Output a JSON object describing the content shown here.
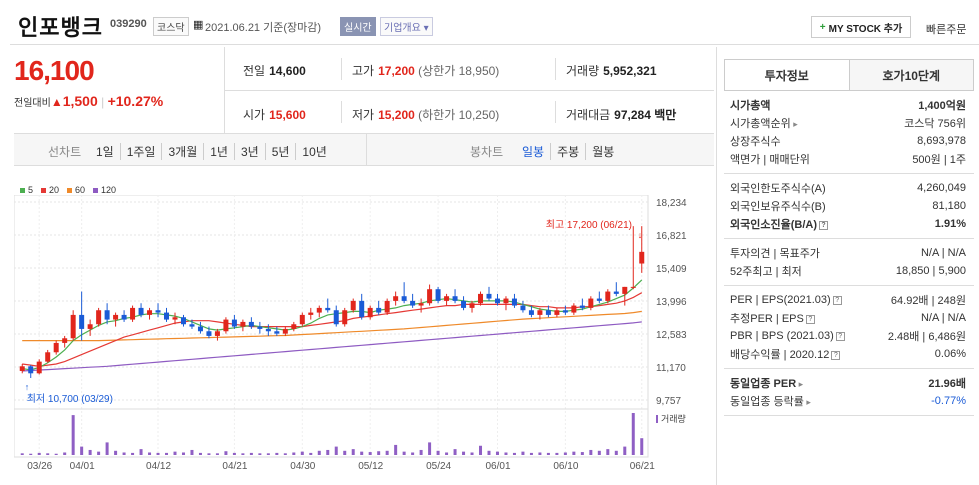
{
  "header": {
    "name": "인포뱅크",
    "code": "039290",
    "market": "코스닥",
    "date": "2021.06.21 기준(장마감)",
    "live_tag": "실시간",
    "info_tag": "기업개요",
    "mystock_label": "MY STOCK 추가",
    "quick_order_label": "빠른주문"
  },
  "price": {
    "current": "16,100",
    "change_label": "전일대비",
    "change": "1,500",
    "change_rate": "+10.27%"
  },
  "summary": {
    "prev_label": "전일",
    "prev": "14,600",
    "high_label": "고가",
    "high": "17,200",
    "upper_limit": "(상한가 18,950)",
    "volume_label": "거래량",
    "volume": "5,952,321",
    "open_label": "시가",
    "open": "15,600",
    "low_label": "저가",
    "low": "15,200",
    "lower_limit": "(하한가 10,250)",
    "amount_label": "거래대금",
    "amount": "97,284",
    "amount_unit": "백만"
  },
  "tabs": {
    "line_label": "선차트",
    "periods": [
      "1일",
      "1주일",
      "3개월",
      "1년",
      "3년",
      "5년",
      "10년"
    ],
    "candle_label": "봉차트",
    "candles": [
      "일봉",
      "주봉",
      "월봉"
    ],
    "selected_candle": "일봉"
  },
  "chart_data": {
    "type": "candlestick",
    "legend": [
      {
        "name": "5",
        "color": "#4caf50"
      },
      {
        "name": "20",
        "color": "#e53935"
      },
      {
        "name": "60",
        "color": "#ef8a2a"
      },
      {
        "name": "120",
        "color": "#8e5bc2"
      }
    ],
    "y_ticks": [
      "18,234",
      "16,821",
      "15,409",
      "13,996",
      "12,583",
      "11,170",
      "9,757"
    ],
    "ylim": [
      9757,
      18234
    ],
    "x_ticks": [
      "03/26",
      "04/01",
      "04/12",
      "04/21",
      "04/30",
      "05/12",
      "05/24",
      "06/01",
      "06/10",
      "06/21"
    ],
    "high_annotation": "최고 17,200 (06/21)",
    "low_annotation": "최저 10,700 (03/29)",
    "volume_label": "거래량",
    "candles": [
      [
        11000,
        11300,
        10900,
        11200
      ],
      [
        11200,
        11250,
        10700,
        10900
      ],
      [
        10900,
        11500,
        10850,
        11400
      ],
      [
        11400,
        11900,
        11350,
        11800
      ],
      [
        11800,
        12300,
        11700,
        12200
      ],
      [
        12200,
        12500,
        12000,
        12400
      ],
      [
        12400,
        13600,
        12300,
        13400
      ],
      [
        13400,
        14400,
        12300,
        12800
      ],
      [
        12800,
        13200,
        12500,
        13000
      ],
      [
        13000,
        13700,
        12900,
        13600
      ],
      [
        13600,
        13900,
        13000,
        13200
      ],
      [
        13200,
        13500,
        12900,
        13400
      ],
      [
        13400,
        13600,
        13100,
        13200
      ],
      [
        13200,
        13800,
        13100,
        13700
      ],
      [
        13700,
        13900,
        13300,
        13400
      ],
      [
        13400,
        13700,
        13200,
        13600
      ],
      [
        13600,
        13900,
        13300,
        13500
      ],
      [
        13500,
        13700,
        13100,
        13200
      ],
      [
        13200,
        13500,
        13000,
        13300
      ],
      [
        13300,
        13400,
        12900,
        13000
      ],
      [
        13000,
        13200,
        12800,
        12900
      ],
      [
        12900,
        13100,
        12600,
        12700
      ],
      [
        12700,
        12900,
        12400,
        12500
      ],
      [
        12500,
        12800,
        12300,
        12700
      ],
      [
        12700,
        13300,
        12600,
        13200
      ],
      [
        13200,
        13400,
        12800,
        12900
      ],
      [
        12900,
        13200,
        12700,
        13100
      ],
      [
        13100,
        13300,
        12800,
        12900
      ],
      [
        12900,
        13100,
        12600,
        12800
      ],
      [
        12800,
        13000,
        12500,
        12700
      ],
      [
        12700,
        12900,
        12500,
        12600
      ],
      [
        12600,
        12900,
        12500,
        12800
      ],
      [
        12800,
        13100,
        12700,
        13000
      ],
      [
        13000,
        13500,
        12900,
        13400
      ],
      [
        13400,
        13700,
        13200,
        13500
      ],
      [
        13500,
        13800,
        13300,
        13700
      ],
      [
        13700,
        14100,
        13500,
        13600
      ],
      [
        13600,
        13800,
        12900,
        13000
      ],
      [
        13000,
        13700,
        12900,
        13600
      ],
      [
        13600,
        14100,
        13500,
        14000
      ],
      [
        14000,
        14300,
        13200,
        13300
      ],
      [
        13300,
        13800,
        13200,
        13700
      ],
      [
        13700,
        14000,
        13400,
        13500
      ],
      [
        13500,
        14100,
        13400,
        14000
      ],
      [
        14000,
        14400,
        13800,
        14200
      ],
      [
        14200,
        14800,
        13900,
        14000
      ],
      [
        14000,
        14300,
        13700,
        13800
      ],
      [
        13800,
        14100,
        13500,
        13900
      ],
      [
        13900,
        14700,
        13800,
        14500
      ],
      [
        14500,
        14600,
        13900,
        14000
      ],
      [
        14000,
        14300,
        13800,
        14200
      ],
      [
        14200,
        14500,
        13900,
        14000
      ],
      [
        14000,
        14200,
        13600,
        13700
      ],
      [
        13700,
        14000,
        13500,
        13900
      ],
      [
        13900,
        14400,
        13800,
        14300
      ],
      [
        14300,
        14600,
        14000,
        14100
      ],
      [
        14100,
        14300,
        13800,
        13900
      ],
      [
        13900,
        14200,
        13600,
        14100
      ],
      [
        14100,
        14300,
        13700,
        13800
      ],
      [
        13800,
        14000,
        13500,
        13600
      ],
      [
        13600,
        13800,
        13300,
        13400
      ],
      [
        13400,
        13700,
        13200,
        13600
      ],
      [
        13600,
        13800,
        13300,
        13400
      ],
      [
        13400,
        13700,
        13300,
        13600
      ],
      [
        13600,
        13800,
        13400,
        13500
      ],
      [
        13500,
        13900,
        13400,
        13800
      ],
      [
        13800,
        14100,
        13600,
        13700
      ],
      [
        13700,
        14200,
        13600,
        14100
      ],
      [
        14100,
        14400,
        13900,
        14000
      ],
      [
        14000,
        14500,
        13900,
        14400
      ],
      [
        14400,
        14800,
        14200,
        14300
      ],
      [
        14300,
        14600,
        13800,
        14600
      ],
      [
        14600,
        17200,
        14500,
        14600
      ],
      [
        15600,
        17200,
        15200,
        16100
      ]
    ],
    "ma5": [
      11100,
      11050,
      11150,
      11350,
      11600,
      11900,
      12300,
      12550,
      12750,
      12950,
      13100,
      13150,
      13250,
      13300,
      13400,
      13450,
      13450,
      13400,
      13350,
      13250,
      13100,
      12950,
      12800,
      12750,
      12800,
      12850,
      12900,
      12950,
      12900,
      12850,
      12800,
      12750,
      12800,
      12900,
      13050,
      13250,
      13400,
      13450,
      13500,
      13550,
      13550,
      13500,
      13600,
      13650,
      13700,
      13800,
      13850,
      13900,
      14000,
      14050,
      14100,
      14050,
      14000,
      13950,
      14000,
      14000,
      14000,
      14000,
      13950,
      13850,
      13750,
      13650,
      13600,
      13550,
      13550,
      13600,
      13650,
      13750,
      13850,
      13950,
      14100,
      14250,
      14550,
      14900
    ],
    "ma20": [
      11300,
      11250,
      11200,
      11250,
      11300,
      11400,
      11550,
      11700,
      11850,
      12000,
      12150,
      12300,
      12450,
      12550,
      12650,
      12750,
      12850,
      12950,
      13050,
      13100,
      13150,
      13150,
      13150,
      13100,
      13050,
      13000,
      12950,
      12900,
      12900,
      12900,
      12900,
      12900,
      12900,
      12900,
      12950,
      13000,
      13050,
      13100,
      13150,
      13250,
      13300,
      13350,
      13400,
      13450,
      13500,
      13550,
      13600,
      13650,
      13700,
      13750,
      13800,
      13800,
      13850,
      13850,
      13850,
      13850,
      13850,
      13850,
      13850,
      13850,
      13800,
      13750,
      13750,
      13700,
      13700,
      13700,
      13750,
      13750,
      13800,
      13850,
      13900,
      14000,
      14150,
      14350
    ],
    "ma60": [
      12300,
      12300,
      12300,
      12300,
      12300,
      12300,
      12300,
      12300,
      12300,
      12300,
      12310,
      12320,
      12330,
      12340,
      12350,
      12360,
      12370,
      12380,
      12390,
      12400,
      12410,
      12420,
      12430,
      12440,
      12450,
      12460,
      12470,
      12480,
      12490,
      12500,
      12510,
      12520,
      12540,
      12560,
      12580,
      12600,
      12620,
      12640,
      12660,
      12680,
      12700,
      12720,
      12740,
      12760,
      12780,
      12800,
      12830,
      12860,
      12890,
      12920,
      12950,
      12980,
      13010,
      13040,
      13070,
      13100,
      13130,
      13160,
      13190,
      13220,
      13240,
      13260,
      13280,
      13300,
      13320,
      13340,
      13360,
      13380,
      13400,
      13420,
      13440,
      13460,
      13500,
      13550
    ],
    "ma120": [
      11000,
      11020,
      11040,
      11060,
      11080,
      11100,
      11120,
      11140,
      11160,
      11180,
      11200,
      11230,
      11260,
      11290,
      11320,
      11350,
      11380,
      11410,
      11440,
      11470,
      11500,
      11530,
      11560,
      11590,
      11620,
      11650,
      11680,
      11710,
      11740,
      11770,
      11800,
      11830,
      11860,
      11890,
      11920,
      11950,
      11980,
      12010,
      12040,
      12070,
      12100,
      12130,
      12160,
      12190,
      12220,
      12250,
      12280,
      12310,
      12340,
      12370,
      12400,
      12430,
      12460,
      12490,
      12520,
      12550,
      12580,
      12610,
      12640,
      12670,
      12700,
      12730,
      12760,
      12790,
      12820,
      12850,
      12880,
      12910,
      12940,
      12970,
      13000,
      13030,
      13060,
      13100
    ],
    "volumes": [
      4,
      3,
      5,
      4,
      3,
      6,
      95,
      20,
      12,
      8,
      30,
      10,
      6,
      5,
      14,
      6,
      5,
      5,
      8,
      6,
      12,
      5,
      4,
      4,
      9,
      5,
      4,
      5,
      4,
      4,
      5,
      4,
      6,
      8,
      5,
      10,
      12,
      20,
      10,
      14,
      8,
      7,
      9,
      10,
      24,
      8,
      6,
      12,
      30,
      10,
      6,
      14,
      8,
      6,
      22,
      10,
      8,
      6,
      5,
      8,
      5,
      6,
      5,
      5,
      6,
      8,
      7,
      12,
      10,
      14,
      10,
      20,
      100,
      40
    ]
  },
  "side": {
    "tabs": [
      "투자정보",
      "호가10단계"
    ],
    "g1": [
      {
        "l": "시가총액",
        "r": "1,400억원",
        "bold": true
      },
      {
        "l": "시가총액순위",
        "r": "코스닥 756위",
        "arrow": true
      },
      {
        "l": "상장주식수",
        "r": "8,693,978"
      },
      {
        "l": "액면가 | 매매단위",
        "r": "500원 | 1주"
      }
    ],
    "g2": [
      {
        "l": "외국인한도주식수(A)",
        "r": "4,260,049"
      },
      {
        "l": "외국인보유주식수(B)",
        "r": "81,180"
      },
      {
        "l": "외국인소진율(B/A)",
        "r": "1.91%",
        "bold": true,
        "q": true
      }
    ],
    "g3": [
      {
        "l": "투자의견 | 목표주가",
        "r": "N/A | N/A"
      },
      {
        "l": "52주최고 | 최저",
        "r": "18,850 | 5,900"
      }
    ],
    "g4": [
      {
        "l": "PER | EPS(2021.03)",
        "r": "64.92배 | 248원",
        "q": true
      },
      {
        "l": "추정PER | EPS",
        "r": "N/A | N/A",
        "q": true
      },
      {
        "l": "PBR | BPS (2021.03)",
        "r": "2.48배 | 6,486원",
        "q": true
      },
      {
        "l": "배당수익률 | 2020.12",
        "r": "0.06%",
        "q": true
      }
    ],
    "g5": [
      {
        "l": "동일업종 PER",
        "r": "21.96배",
        "bold": true,
        "arrow": true
      },
      {
        "l": "동일업종 등락률",
        "r": "-0.77%",
        "arrow": true,
        "blue": true
      }
    ]
  }
}
